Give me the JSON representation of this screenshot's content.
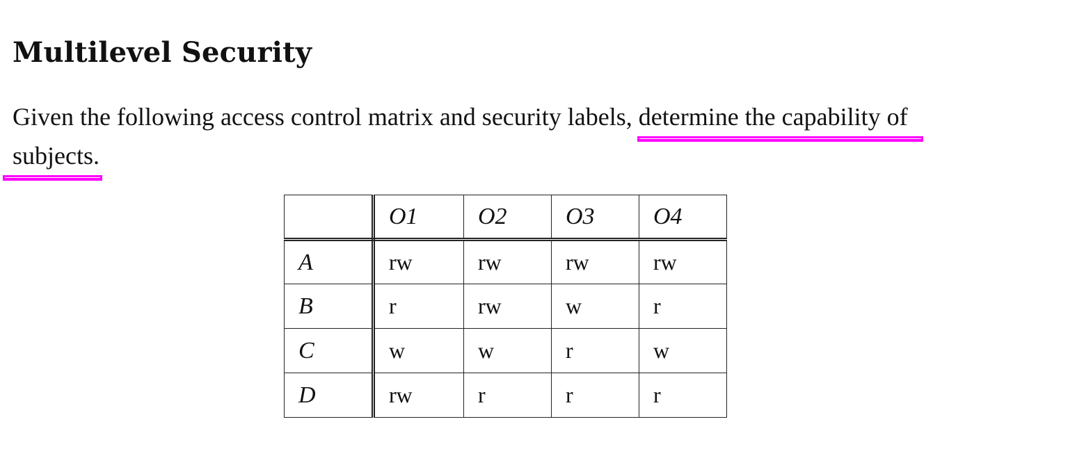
{
  "document": {
    "title": "Multilevel Security",
    "paragraph": {
      "line1_plain": "Given the following access control matrix and security labels, ",
      "line1_highlight": "determine the capability of",
      "line2_highlight": "subjects."
    },
    "highlight_color": "#ff00ff",
    "matrix": {
      "columns": [
        "",
        "O1",
        "O2",
        "O3",
        "O4"
      ],
      "rows": [
        {
          "subject": "A",
          "cells": [
            "rw",
            "rw",
            "rw",
            "rw"
          ]
        },
        {
          "subject": "B",
          "cells": [
            "r",
            "rw",
            "w",
            "r"
          ]
        },
        {
          "subject": "C",
          "cells": [
            "w",
            "w",
            "r",
            "w"
          ]
        },
        {
          "subject": "D",
          "cells": [
            "rw",
            "r",
            "r",
            "r"
          ]
        }
      ]
    }
  }
}
